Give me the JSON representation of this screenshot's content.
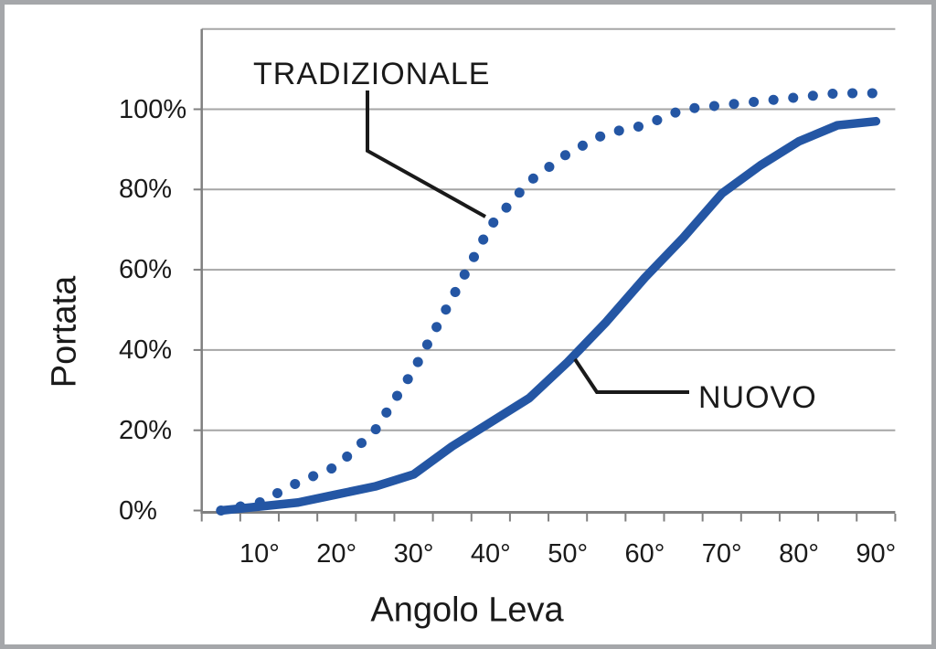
{
  "figure": {
    "frame_color": "#a5a7aa",
    "background": "#ffffff"
  },
  "colors": {
    "series_blue": "#2456a4",
    "gridline": "#a6a6a6",
    "axis": "#808080",
    "text": "#1a1a1a",
    "callout": "#1a1a1a"
  },
  "chart_data": {
    "type": "line",
    "title": "",
    "xlabel": "Angolo Leva",
    "ylabel": "Portata",
    "x": [
      5,
      10,
      15,
      20,
      25,
      30,
      35,
      40,
      45,
      50,
      55,
      60,
      65,
      70,
      75,
      80,
      85,
      90
    ],
    "x_tick_values": [
      10,
      20,
      30,
      40,
      50,
      60,
      70,
      80,
      90
    ],
    "x_tick_labels": [
      "10°",
      "20°",
      "30°",
      "40°",
      "50°",
      "60°",
      "70°",
      "80°",
      "90°"
    ],
    "y_tick_values": [
      0,
      20,
      40,
      60,
      80,
      100
    ],
    "y_tick_labels": [
      "0%",
      "20%",
      "40%",
      "60%",
      "80%",
      "100%"
    ],
    "ylim": [
      0,
      120
    ],
    "grid": true,
    "legend_position": "none",
    "series": [
      {
        "name": "TRADIZIONALE",
        "style": "dotted",
        "values": [
          0,
          2,
          7,
          11,
          20,
          35,
          53,
          71,
          82,
          89,
          94,
          96,
          100,
          101,
          102,
          103,
          104,
          104
        ]
      },
      {
        "name": "NUOVO",
        "style": "solid",
        "values": [
          0,
          1,
          2,
          4,
          6,
          9,
          16,
          22,
          28,
          37,
          47,
          58,
          68,
          79,
          86,
          92,
          96,
          97
        ]
      }
    ],
    "annotations": [
      {
        "text": "TRADIZIONALE",
        "series": "TRADIZIONALE"
      },
      {
        "text": "NUOVO",
        "series": "NUOVO"
      }
    ]
  }
}
